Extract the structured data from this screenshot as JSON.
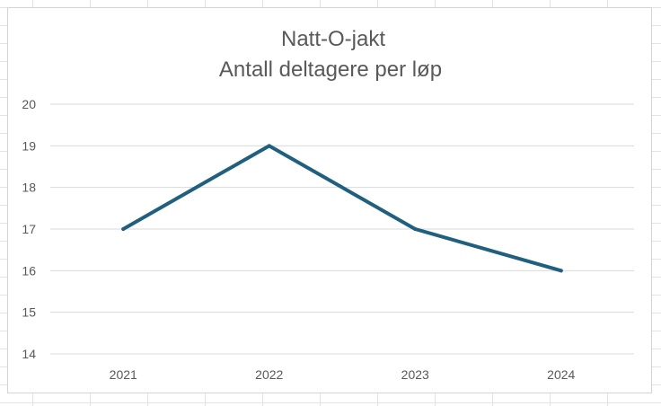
{
  "chart_data": {
    "type": "line",
    "title": "Natt-O-jakt",
    "subtitle": "Antall deltagere per løp",
    "categories": [
      "2021",
      "2022",
      "2023",
      "2024"
    ],
    "series": [
      {
        "values": [
          17,
          19,
          17,
          16
        ],
        "color": "#1f5f7f"
      }
    ],
    "ylim": [
      14,
      20
    ],
    "yticks": [
      14,
      15,
      16,
      17,
      18,
      19,
      20
    ],
    "grid": true,
    "legend": "none"
  }
}
